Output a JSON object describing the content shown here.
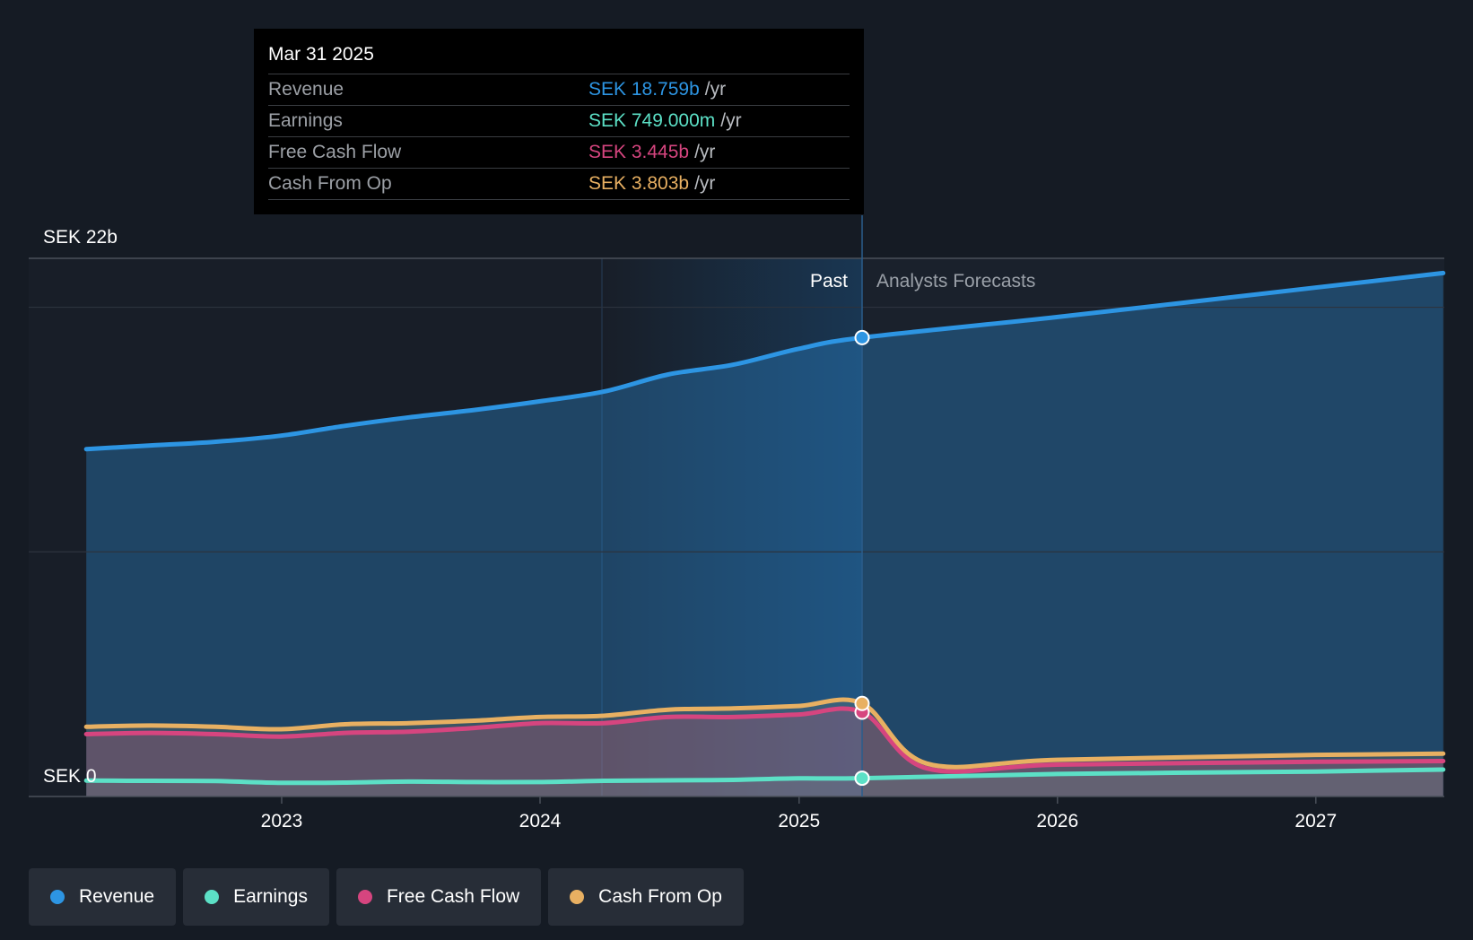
{
  "chart_data": {
    "type": "line",
    "y_top_label": "SEK 22b",
    "y_bottom_label": "SEK 0",
    "ylim": [
      0,
      22
    ],
    "x_ticks": [
      "2023",
      "2024",
      "2025",
      "2026",
      "2027"
    ],
    "past_label": "Past",
    "forecast_label": "Analysts Forecasts",
    "divider_date": "2025-03-31",
    "series": [
      {
        "name": "Revenue",
        "color": "#2d95e3",
        "points": [
          [
            "2022-03-31",
            14.2
          ],
          [
            "2022-06-30",
            14.35
          ],
          [
            "2022-09-30",
            14.5
          ],
          [
            "2022-12-31",
            14.75
          ],
          [
            "2023-03-31",
            15.15
          ],
          [
            "2023-06-30",
            15.5
          ],
          [
            "2023-09-30",
            15.8
          ],
          [
            "2023-12-31",
            16.15
          ],
          [
            "2024-03-31",
            16.55
          ],
          [
            "2024-06-30",
            17.25
          ],
          [
            "2024-09-30",
            17.65
          ],
          [
            "2024-12-31",
            18.3
          ],
          [
            "2025-03-31",
            18.759
          ],
          [
            "2025-12-31",
            19.6
          ],
          [
            "2026-12-31",
            20.8
          ],
          [
            "2027-06-30",
            21.4
          ]
        ]
      },
      {
        "name": "Earnings",
        "color": "#5ce0c6",
        "points": [
          [
            "2022-03-31",
            0.65
          ],
          [
            "2022-06-30",
            0.64
          ],
          [
            "2022-09-30",
            0.63
          ],
          [
            "2022-12-31",
            0.56
          ],
          [
            "2023-03-31",
            0.57
          ],
          [
            "2023-06-30",
            0.61
          ],
          [
            "2023-09-30",
            0.59
          ],
          [
            "2023-12-31",
            0.59
          ],
          [
            "2024-03-31",
            0.64
          ],
          [
            "2024-06-30",
            0.66
          ],
          [
            "2024-09-30",
            0.68
          ],
          [
            "2024-12-31",
            0.74
          ],
          [
            "2025-03-31",
            0.749
          ],
          [
            "2025-12-31",
            0.92
          ],
          [
            "2026-12-31",
            1.02
          ],
          [
            "2027-06-30",
            1.1
          ]
        ]
      },
      {
        "name": "Free Cash Flow",
        "color": "#d6457f",
        "points": [
          [
            "2022-03-31",
            2.55
          ],
          [
            "2022-06-30",
            2.6
          ],
          [
            "2022-09-30",
            2.55
          ],
          [
            "2022-12-31",
            2.45
          ],
          [
            "2023-03-31",
            2.6
          ],
          [
            "2023-06-30",
            2.65
          ],
          [
            "2023-09-30",
            2.8
          ],
          [
            "2023-12-31",
            3.0
          ],
          [
            "2024-03-31",
            3.0
          ],
          [
            "2024-06-30",
            3.25
          ],
          [
            "2024-09-30",
            3.25
          ],
          [
            "2024-12-31",
            3.35
          ],
          [
            "2025-03-31",
            3.445
          ],
          [
            "2025-06-30",
            1.15
          ],
          [
            "2025-12-31",
            1.3
          ],
          [
            "2026-12-31",
            1.42
          ],
          [
            "2027-06-30",
            1.45
          ]
        ]
      },
      {
        "name": "Cash From Op",
        "color": "#e8b062",
        "points": [
          [
            "2022-03-31",
            2.85
          ],
          [
            "2022-06-30",
            2.9
          ],
          [
            "2022-09-30",
            2.85
          ],
          [
            "2022-12-31",
            2.75
          ],
          [
            "2023-03-31",
            2.95
          ],
          [
            "2023-06-30",
            3.0
          ],
          [
            "2023-09-30",
            3.1
          ],
          [
            "2023-12-31",
            3.25
          ],
          [
            "2024-03-31",
            3.3
          ],
          [
            "2024-06-30",
            3.55
          ],
          [
            "2024-09-30",
            3.6
          ],
          [
            "2024-12-31",
            3.7
          ],
          [
            "2025-03-31",
            3.803
          ],
          [
            "2025-06-30",
            1.35
          ],
          [
            "2025-12-31",
            1.5
          ],
          [
            "2026-12-31",
            1.7
          ],
          [
            "2027-06-30",
            1.75
          ]
        ]
      }
    ]
  },
  "tooltip": {
    "date": "Mar 31 2025",
    "rows": [
      {
        "name": "Revenue",
        "value": "SEK 18.759b",
        "unit": "/yr",
        "color": "#2d95e3"
      },
      {
        "name": "Earnings",
        "value": "SEK 749.000m",
        "unit": "/yr",
        "color": "#5ce0c6"
      },
      {
        "name": "Free Cash Flow",
        "value": "SEK 3.445b",
        "unit": "/yr",
        "color": "#d6457f"
      },
      {
        "name": "Cash From Op",
        "value": "SEK 3.803b",
        "unit": "/yr",
        "color": "#e8b062"
      }
    ]
  },
  "legend": [
    {
      "label": "Revenue",
      "color": "#2d95e3"
    },
    {
      "label": "Earnings",
      "color": "#5ce0c6"
    },
    {
      "label": "Free Cash Flow",
      "color": "#d6457f"
    },
    {
      "label": "Cash From Op",
      "color": "#e8b062"
    }
  ]
}
